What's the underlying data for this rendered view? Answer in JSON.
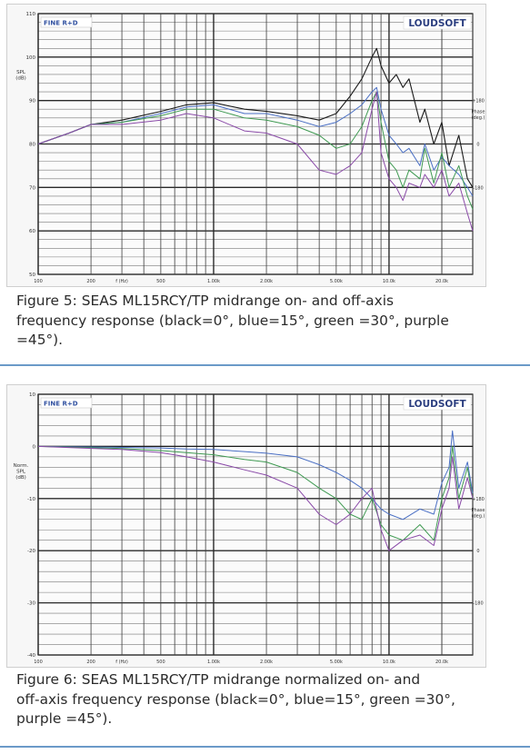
{
  "chart_data": [
    {
      "type": "line",
      "brand": "LOUDSOFT",
      "badge": "FINE R+D",
      "ylabel": "SPL\n(dB)",
      "y2label": "Phase\n(deg.)",
      "xlabel": "f (Hz)",
      "xscale": "log",
      "xlim": [
        100,
        30000
      ],
      "ylim": [
        50,
        110
      ],
      "yticks": [
        50,
        60,
        70,
        80,
        90,
        100,
        110
      ],
      "ytick_labels": [
        "50",
        "60",
        "70",
        "80",
        "90",
        "100",
        "110"
      ],
      "y2ticks": [
        70,
        80,
        90
      ],
      "y2tick_labels": [
        "-180",
        "0",
        "+180"
      ],
      "xtick_values": [
        100,
        200,
        300,
        500,
        1000,
        2000,
        5000,
        10000,
        20000
      ],
      "xtick_labels": [
        "100",
        "200",
        "f (Hz)",
        "500",
        "1.00k",
        "2.00k",
        "5.00k",
        "10.0k",
        "20.0k"
      ],
      "grid": true,
      "series": [
        {
          "color": "#1a1a1a",
          "x": [
            100,
            150,
            200,
            300,
            500,
            700,
            1000,
            1500,
            2000,
            3000,
            4000,
            5000,
            6000,
            7000,
            8000,
            8500,
            9000,
            10000,
            11000,
            12000,
            13000,
            15000,
            16000,
            18000,
            20000,
            22000,
            25000,
            28000,
            30000
          ],
          "y": [
            80,
            82.5,
            84.5,
            85.5,
            87.5,
            89,
            89.5,
            88,
            87.5,
            86.5,
            85.5,
            87,
            91,
            95,
            100,
            102,
            98,
            94,
            96,
            93,
            95,
            85,
            88,
            80,
            85,
            75,
            82,
            72,
            70
          ]
        },
        {
          "color": "#4a6fc4",
          "x": [
            100,
            150,
            200,
            300,
            500,
            700,
            1000,
            1500,
            2000,
            3000,
            4000,
            5000,
            6000,
            7000,
            8000,
            8500,
            9000,
            10000,
            11000,
            12000,
            13000,
            15000,
            16000,
            18000,
            20000,
            22000,
            25000,
            28000,
            30000
          ],
          "y": [
            80,
            82.5,
            84.5,
            85,
            87,
            88.5,
            89,
            87,
            87,
            85.5,
            84,
            85,
            87,
            89,
            92,
            93,
            88,
            82,
            80,
            78,
            79,
            75,
            80,
            74,
            77,
            75,
            73,
            70,
            68
          ]
        },
        {
          "color": "#3f9a52",
          "x": [
            100,
            150,
            200,
            300,
            500,
            700,
            1000,
            1500,
            2000,
            3000,
            4000,
            5000,
            6000,
            7000,
            8000,
            8500,
            9000,
            10000,
            11000,
            12000,
            13000,
            15000,
            16000,
            18000,
            20000,
            22000,
            25000,
            28000,
            30000
          ],
          "y": [
            80,
            82.5,
            84.5,
            85,
            86.5,
            88,
            88,
            86,
            85.5,
            84,
            82,
            79,
            80,
            84,
            90,
            92,
            85,
            76,
            74,
            70,
            74,
            72,
            79,
            71,
            78,
            70,
            75,
            68,
            65
          ]
        },
        {
          "color": "#8a4aa8",
          "x": [
            100,
            150,
            200,
            300,
            500,
            700,
            1000,
            1500,
            2000,
            3000,
            4000,
            5000,
            6000,
            7000,
            8000,
            8500,
            9000,
            10000,
            11000,
            12000,
            13000,
            15000,
            16000,
            18000,
            20000,
            22000,
            25000,
            28000,
            30000
          ],
          "y": [
            80,
            82.5,
            84.5,
            84.5,
            85.5,
            87,
            86,
            83,
            82.5,
            80,
            74,
            73,
            75,
            78,
            88,
            92,
            78,
            72,
            70,
            67,
            71,
            70,
            73,
            70,
            74,
            68,
            71,
            64,
            60
          ]
        }
      ]
    },
    {
      "type": "line",
      "brand": "LOUDSOFT",
      "badge": "FINE R+D",
      "ylabel": "Norm.\nSPL\n(dB)",
      "y2label": "Phase\n(deg.)",
      "xlabel": "f (Hz)",
      "xscale": "log",
      "xlim": [
        100,
        30000
      ],
      "ylim": [
        -40,
        10
      ],
      "yticks": [
        -40,
        -30,
        -20,
        -10,
        0,
        10
      ],
      "ytick_labels": [
        "-40",
        "-30",
        "-20",
        "-10",
        "0",
        "10"
      ],
      "y2ticks": [
        -30,
        -20,
        -10
      ],
      "y2tick_labels": [
        "-180",
        "0",
        "+180"
      ],
      "xtick_values": [
        100,
        200,
        300,
        500,
        1000,
        2000,
        5000,
        10000,
        20000
      ],
      "xtick_labels": [
        "100",
        "200",
        "f (Hz)",
        "500",
        "1.00k",
        "2.00k",
        "5.00k",
        "10.0k",
        "20.0k"
      ],
      "grid": true,
      "series": [
        {
          "color": "#1a1a1a",
          "x": [
            100,
            30000
          ],
          "y": [
            0,
            0
          ]
        },
        {
          "color": "#4a6fc4",
          "x": [
            100,
            300,
            500,
            700,
            1000,
            1500,
            2000,
            3000,
            4000,
            5000,
            6000,
            7000,
            8000,
            9000,
            10000,
            12000,
            15000,
            18000,
            20000,
            22000,
            23000,
            25000,
            28000,
            30000
          ],
          "y": [
            0,
            -0.2,
            -0.3,
            -0.5,
            -0.6,
            -1,
            -1.3,
            -2,
            -3.5,
            -5,
            -6.5,
            -8,
            -10,
            -12,
            -13,
            -14,
            -12,
            -13,
            -7,
            -4,
            3,
            -8,
            -3,
            -9
          ]
        },
        {
          "color": "#3f9a52",
          "x": [
            100,
            300,
            500,
            700,
            1000,
            1500,
            2000,
            3000,
            4000,
            5000,
            6000,
            7000,
            8000,
            9000,
            10000,
            12000,
            15000,
            18000,
            20000,
            22000,
            23000,
            25000,
            28000,
            30000
          ],
          "y": [
            0,
            -0.4,
            -0.8,
            -1.2,
            -1.6,
            -2.5,
            -3,
            -5,
            -8,
            -10,
            -13,
            -14,
            -10,
            -15,
            -17,
            -18,
            -15,
            -18,
            -10,
            -6,
            0,
            -10,
            -4,
            -10
          ]
        },
        {
          "color": "#8a4aa8",
          "x": [
            100,
            300,
            500,
            700,
            1000,
            1500,
            2000,
            3000,
            4000,
            5000,
            6000,
            7000,
            8000,
            9000,
            10000,
            12000,
            15000,
            18000,
            20000,
            22000,
            23000,
            25000,
            28000,
            30000
          ],
          "y": [
            0,
            -0.6,
            -1.2,
            -2,
            -3,
            -4.5,
            -5.5,
            -8,
            -13,
            -15,
            -13,
            -10,
            -8,
            -16,
            -20,
            -18,
            -17,
            -19,
            -12,
            -8,
            -2,
            -12,
            -6,
            -10
          ]
        }
      ]
    }
  ],
  "captions": [
    [
      "Figure 5: SEAS ML15RCY/TP midrange on- and off-axis",
      "frequency response (black=0°, blue=15°, green =30°, purple",
      "=45°)."
    ],
    [
      "Figure 6: SEAS ML15RCY/TP midrange normalized on- and",
      "off-axis frequency response (black=0°, blue=15°, green =30°,",
      "purple =45°)."
    ]
  ]
}
